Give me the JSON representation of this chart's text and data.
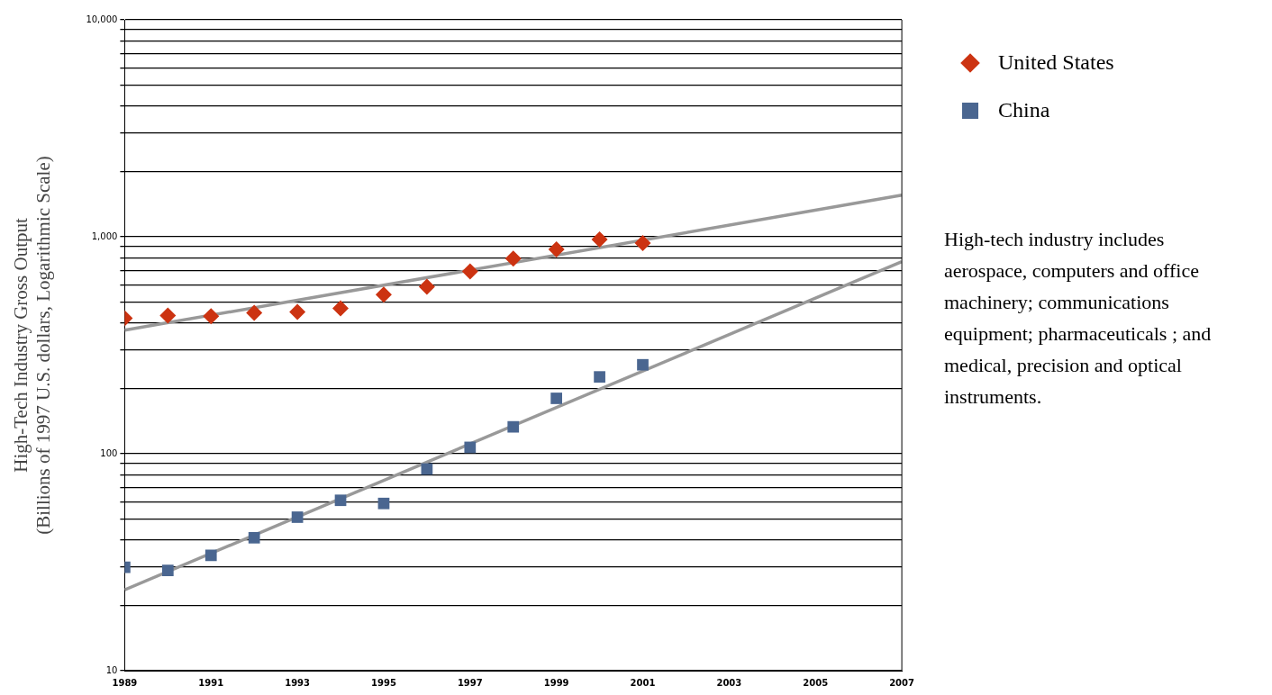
{
  "chart_data": {
    "type": "scatter",
    "ylabel": "High-Tech Industry Gross Output\n(Billions of 1997 U.S. dollars, Logarithmic Scale)",
    "xlim": [
      1989,
      2007
    ],
    "xticks": [
      1989,
      1991,
      1993,
      1995,
      1997,
      1999,
      2001,
      2003,
      2005,
      2007
    ],
    "ylim": [
      10,
      10000
    ],
    "log": "y",
    "yticks": [
      {
        "value": 10,
        "label": "10"
      },
      {
        "value": 20,
        "label": null
      },
      {
        "value": 30,
        "label": null
      },
      {
        "value": 40,
        "label": null
      },
      {
        "value": 50,
        "label": null
      },
      {
        "value": 60,
        "label": null
      },
      {
        "value": 70,
        "label": null
      },
      {
        "value": 80,
        "label": null
      },
      {
        "value": 90,
        "label": null
      },
      {
        "value": 100,
        "label": "100"
      },
      {
        "value": 200,
        "label": null
      },
      {
        "value": 300,
        "label": null
      },
      {
        "value": 400,
        "label": null
      },
      {
        "value": 500,
        "label": null
      },
      {
        "value": 600,
        "label": null
      },
      {
        "value": 700,
        "label": null
      },
      {
        "value": 800,
        "label": null
      },
      {
        "value": 900,
        "label": null
      },
      {
        "value": 1000,
        "label": "1,000"
      },
      {
        "value": 2000,
        "label": null
      },
      {
        "value": 3000,
        "label": null
      },
      {
        "value": 4000,
        "label": null
      },
      {
        "value": 5000,
        "label": null
      },
      {
        "value": 6000,
        "label": null
      },
      {
        "value": 7000,
        "label": null
      },
      {
        "value": 8000,
        "label": null
      },
      {
        "value": 9000,
        "label": null
      },
      {
        "value": 10000,
        "label": "10,000"
      }
    ],
    "grid": "y",
    "legend": "top right",
    "series": [
      {
        "name": "United States",
        "marker": "diamond",
        "color": "#cc3311",
        "x": [
          1989,
          1990,
          1991,
          1992,
          1993,
          1994,
          1995,
          1996,
          1997,
          1998,
          1999,
          2000,
          2001
        ],
        "values": [
          421,
          433,
          430,
          446,
          450,
          468,
          541,
          589,
          693,
          794,
          875,
          971,
          935
        ]
      },
      {
        "name": "China",
        "marker": "square",
        "color": "#4a6690",
        "x": [
          1989,
          1990,
          1991,
          1992,
          1993,
          1994,
          1995,
          1996,
          1997,
          1998,
          1999,
          2000,
          2001
        ],
        "values": [
          30,
          29,
          34,
          41,
          51,
          61,
          59,
          85,
          107,
          133,
          180,
          226,
          257
        ]
      },
      {
        "type": "line",
        "marker": "none",
        "color": "#999999",
        "x": [
          1989,
          2007
        ],
        "values": [
          371,
          1556
        ]
      },
      {
        "type": "line",
        "marker": "none",
        "color": "#999999",
        "x": [
          1989,
          2007
        ],
        "values": [
          23.6,
          768
        ]
      }
    ],
    "annotations": [
      "High-tech industry includes aerospace, computers and office machinery; communications equipment; pharmaceuticals ; and medical, precision and optical instruments."
    ]
  }
}
